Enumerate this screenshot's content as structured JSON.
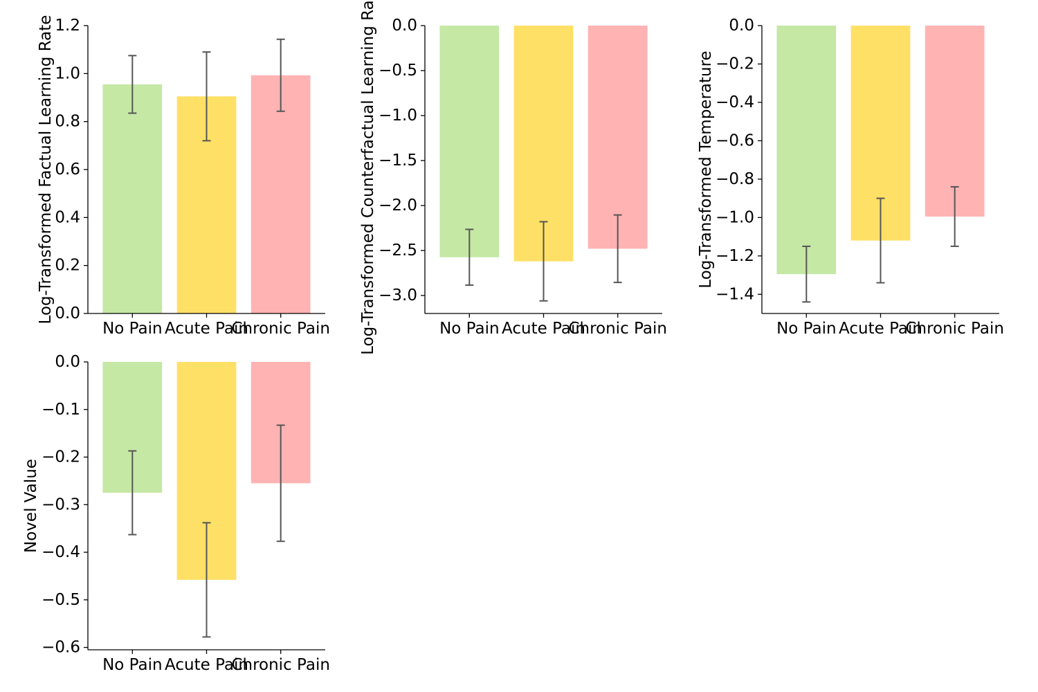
{
  "chart_data": [
    {
      "type": "bar",
      "title": "",
      "xlabel": "",
      "ylabel": "Log-Transformed Factual Learning Rate",
      "categories": [
        "No Pain",
        "Acute Pain",
        "Chronic Pain"
      ],
      "values": [
        0.955,
        0.905,
        0.993
      ],
      "errors": [
        0.12,
        0.185,
        0.15
      ],
      "colors": [
        "#c5e8a5",
        "#ffe066",
        "#ffb3b3"
      ],
      "ylim": [
        0,
        1.2
      ],
      "yticks": [
        0.0,
        0.2,
        0.4,
        0.6,
        0.8,
        1.0,
        1.2
      ],
      "ytick_labels": [
        "0.0",
        "0.2",
        "0.4",
        "0.6",
        "0.8",
        "1.0",
        "1.2"
      ]
    },
    {
      "type": "bar",
      "title": "",
      "xlabel": "",
      "ylabel": "Log-Transformed Counterfactual Learning Rate",
      "categories": [
        "No Pain",
        "Acute Pain",
        "Chronic Pain"
      ],
      "values": [
        -2.575,
        -2.62,
        -2.48
      ],
      "errors": [
        0.31,
        0.44,
        0.375
      ],
      "colors": [
        "#c5e8a5",
        "#ffe066",
        "#ffb3b3"
      ],
      "ylim": [
        -3.2,
        0
      ],
      "yticks": [
        -3.0,
        -2.5,
        -2.0,
        -1.5,
        -1.0,
        -0.5,
        0.0
      ],
      "ytick_labels": [
        "−3.0",
        "−2.5",
        "−2.0",
        "−1.5",
        "−1.0",
        "−0.5",
        "0.0"
      ]
    },
    {
      "type": "bar",
      "title": "",
      "xlabel": "",
      "ylabel": "Log-Transformed Temperature",
      "categories": [
        "No Pain",
        "Acute Pain",
        "Chronic Pain"
      ],
      "values": [
        -1.295,
        -1.12,
        -0.995
      ],
      "errors": [
        0.145,
        0.22,
        0.155
      ],
      "colors": [
        "#c5e8a5",
        "#ffe066",
        "#ffb3b3"
      ],
      "ylim": [
        -1.5,
        0
      ],
      "yticks": [
        -1.4,
        -1.2,
        -1.0,
        -0.8,
        -0.6,
        -0.4,
        -0.2,
        0.0
      ],
      "ytick_labels": [
        "−1.4",
        "−1.2",
        "−1.0",
        "−0.8",
        "−0.6",
        "−0.4",
        "−0.2",
        "0.0"
      ]
    },
    {
      "type": "bar",
      "title": "",
      "xlabel": "",
      "ylabel": "Novel Value",
      "categories": [
        "No Pain",
        "Acute Pain",
        "Chronic Pain"
      ],
      "values": [
        -0.275,
        -0.458,
        -0.255
      ],
      "errors": [
        0.088,
        0.12,
        0.122
      ],
      "colors": [
        "#c5e8a5",
        "#ffe066",
        "#ffb3b3"
      ],
      "ylim": [
        -0.605,
        0
      ],
      "yticks": [
        -0.6,
        -0.5,
        -0.4,
        -0.3,
        -0.2,
        -0.1,
        0.0
      ],
      "ytick_labels": [
        "−0.6",
        "−0.5",
        "−0.4",
        "−0.3",
        "−0.2",
        "−0.1",
        "0.0"
      ]
    }
  ]
}
